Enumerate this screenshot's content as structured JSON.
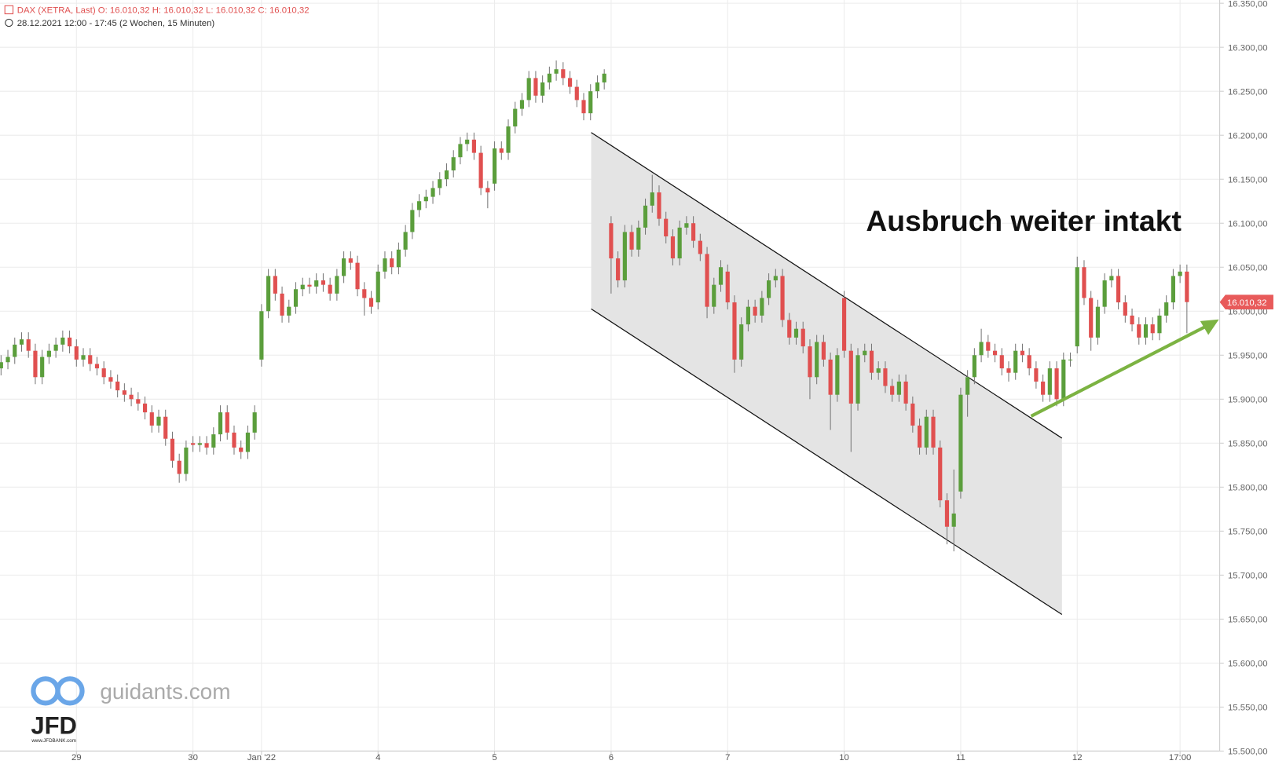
{
  "chart_data": {
    "type": "candlestick",
    "title": "DAX (XETRA, Last)  O: 16.010,32  H: 16.010,32  L: 16.010,32  C: 16.010,32",
    "subtitle": "28.12.2021 12:00 - 17:45   (2 Wochen, 15 Minuten)",
    "annotation": "Ausbruch weiter intakt",
    "watermark": "guidants.com",
    "brand": "JFD",
    "brand_url": "www.JFDBANK.com",
    "last_price_label": "16.010,32",
    "up_color": "#5b9e3c",
    "down_color": "#e05050",
    "grid": true,
    "categories": [
      null,
      null,
      null,
      null,
      null,
      null,
      null,
      null,
      null,
      null,
      null,
      "29",
      null,
      null,
      null,
      null,
      null,
      null,
      null,
      null,
      null,
      null,
      null,
      null,
      null,
      null,
      null,
      null,
      "30",
      null,
      null,
      null,
      null,
      null,
      null,
      null,
      null,
      null,
      "Jan '22",
      null,
      null,
      null,
      null,
      null,
      null,
      null,
      null,
      null,
      null,
      null,
      null,
      null,
      null,
      null,
      null,
      "4",
      null,
      null,
      null,
      null,
      null,
      null,
      null,
      null,
      null,
      null,
      null,
      null,
      null,
      null,
      null,
      null,
      "5",
      null,
      null,
      null,
      null,
      null,
      null,
      null,
      null,
      null,
      null,
      null,
      null,
      null,
      null,
      null,
      null,
      "6",
      null,
      null,
      null,
      null,
      null,
      null,
      null,
      null,
      null,
      null,
      null,
      null,
      null,
      null,
      null,
      null,
      "7",
      null,
      null,
      null,
      null,
      null,
      null,
      null,
      null,
      null,
      null,
      null,
      null,
      null,
      null,
      null,
      null,
      "10",
      null,
      null,
      null,
      null,
      null,
      null,
      null,
      null,
      null,
      null,
      null,
      null,
      null,
      null,
      null,
      null,
      "11",
      null,
      null,
      null,
      null,
      null,
      null,
      null,
      null,
      null,
      null,
      null,
      null,
      null,
      null,
      null,
      null,
      "12",
      null,
      null,
      null,
      null,
      null,
      null,
      null,
      null,
      null,
      null,
      null,
      null,
      null,
      null,
      "17:00",
      null
    ],
    "open": [
      15935,
      15942,
      15948,
      15962,
      15968,
      15955,
      15925,
      15948,
      15955,
      15962,
      15970,
      15960,
      15945,
      15950,
      15940,
      15935,
      15925,
      15920,
      15910,
      15905,
      15900,
      15895,
      15885,
      15870,
      15880,
      15855,
      15830,
      15815,
      15850,
      15848,
      15850,
      15845,
      15860,
      15885,
      15862,
      15845,
      15840,
      15862,
      15945,
      16000,
      16040,
      16020,
      15995,
      16005,
      16025,
      16030,
      16028,
      16035,
      16030,
      16020,
      16040,
      16060,
      16055,
      16025,
      16015,
      16010,
      16045,
      16060,
      16050,
      16070,
      16090,
      16115,
      16125,
      16130,
      16140,
      16150,
      16160,
      16175,
      16190,
      16195,
      16180,
      16140,
      16145,
      16185,
      16180,
      16210,
      16230,
      16240,
      16265,
      16245,
      16260,
      16270,
      16275,
      16265,
      16255,
      16240,
      16225,
      16250,
      16260,
      16100,
      16060,
      16035,
      16090,
      16070,
      16095,
      16120,
      16135,
      16105,
      16085,
      16060,
      16095,
      16100,
      16080,
      16065,
      16005,
      16030,
      16045,
      16010,
      15945,
      15985,
      16005,
      15995,
      16015,
      16035,
      16040,
      15990,
      15970,
      15980,
      15960,
      15925,
      15965,
      15945,
      15905,
      16015,
      15955,
      15895,
      15950,
      15955,
      15930,
      15935,
      15915,
      15905,
      15920,
      15895,
      15870,
      15845,
      15880,
      15845,
      15785,
      15755,
      15795,
      15905,
      15925,
      15950,
      15965,
      15955,
      15950,
      15935,
      15930,
      15955,
      15950,
      15935,
      15920,
      15905,
      15935,
      15900,
      15945,
      15960,
      16050,
      16015,
      15970,
      16005,
      16035,
      16040,
      16010,
      15995,
      15985,
      15970,
      15985,
      15975,
      15995,
      16010,
      16040,
      16045
    ],
    "high": [
      15950,
      15956,
      15970,
      15976,
      15976,
      15963,
      15956,
      15963,
      15970,
      15978,
      15978,
      15968,
      15958,
      15958,
      15948,
      15943,
      15933,
      15928,
      15918,
      15913,
      15908,
      15903,
      15893,
      15888,
      15888,
      15863,
      15838,
      15853,
      15858,
      15858,
      15858,
      15868,
      15893,
      15893,
      15870,
      15853,
      15870,
      15893,
      16008,
      16048,
      16048,
      16028,
      16013,
      16033,
      16038,
      16038,
      16043,
      16043,
      16038,
      16048,
      16068,
      16068,
      16063,
      16033,
      16023,
      16053,
      16068,
      16068,
      16078,
      16098,
      16123,
      16133,
      16138,
      16148,
      16158,
      16168,
      16183,
      16198,
      16203,
      16203,
      16188,
      16148,
      16193,
      16193,
      16218,
      16238,
      16248,
      16273,
      16273,
      16268,
      16278,
      16285,
      16283,
      16273,
      16263,
      16248,
      16258,
      16268,
      16275,
      16108,
      16068,
      16098,
      16098,
      16103,
      16128,
      16155,
      16143,
      16113,
      16093,
      16103,
      16108,
      16108,
      16088,
      16073,
      16038,
      16058,
      16053,
      16018,
      15993,
      16013,
      16013,
      16023,
      16043,
      16048,
      16048,
      15998,
      15988,
      15988,
      15968,
      15973,
      15973,
      15953,
      15958,
      16023,
      15963,
      15958,
      15963,
      15963,
      15943,
      15943,
      15923,
      15928,
      15928,
      15903,
      15878,
      15888,
      15888,
      15853,
      15793,
      15820,
      15913,
      15933,
      15958,
      15980,
      15973,
      15963,
      15958,
      15943,
      15963,
      15963,
      15958,
      15943,
      15928,
      15943,
      15943,
      15953,
      15953,
      16062,
      16058,
      16023,
      16013,
      16043,
      16048,
      16048,
      16018,
      16003,
      15993,
      15993,
      15993,
      16003,
      16018,
      16048,
      16053,
      16053
    ],
    "low": [
      15927,
      15934,
      15940,
      15954,
      15947,
      15917,
      15917,
      15940,
      15947,
      15954,
      15952,
      15937,
      15937,
      15932,
      15927,
      15917,
      15912,
      15902,
      15897,
      15892,
      15887,
      15877,
      15862,
      15862,
      15847,
      15822,
      15805,
      15807,
      15840,
      15840,
      15837,
      15837,
      15852,
      15854,
      15837,
      15832,
      15832,
      15854,
      15937,
      15992,
      16012,
      15987,
      15987,
      15997,
      16017,
      16020,
      16020,
      16022,
      16012,
      16012,
      16032,
      16047,
      16017,
      15995,
      15997,
      16002,
      16037,
      16042,
      16042,
      16062,
      16082,
      16107,
      16117,
      16122,
      16132,
      16142,
      16152,
      16167,
      16182,
      16172,
      16132,
      16117,
      16137,
      16172,
      16172,
      16202,
      16222,
      16232,
      16237,
      16237,
      16252,
      16262,
      16257,
      16247,
      16232,
      16217,
      16217,
      16242,
      16252,
      16020,
      16027,
      16027,
      16062,
      16062,
      16087,
      16112,
      16097,
      16077,
      16052,
      16052,
      16087,
      16072,
      16057,
      15992,
      15997,
      16022,
      16002,
      15930,
      15937,
      15977,
      15987,
      15987,
      16007,
      16027,
      15982,
      15962,
      15962,
      15952,
      15900,
      15917,
      15937,
      15865,
      15897,
      15947,
      15840,
      15887,
      15942,
      15922,
      15922,
      15907,
      15897,
      15897,
      15887,
      15862,
      15837,
      15837,
      15837,
      15777,
      15735,
      15727,
      15787,
      15880,
      15917,
      15942,
      15947,
      15942,
      15927,
      15920,
      15922,
      15942,
      15927,
      15912,
      15897,
      15897,
      15892,
      15892,
      15937,
      15952,
      16007,
      15955,
      15962,
      15997,
      16027,
      16002,
      15987,
      15977,
      15962,
      15962,
      15967,
      15967,
      15987,
      16002,
      16032,
      15975
    ],
    "close": [
      15942,
      15948,
      15962,
      15968,
      15955,
      15925,
      15948,
      15955,
      15962,
      15970,
      15960,
      15945,
      15950,
      15940,
      15935,
      15925,
      15920,
      15910,
      15905,
      15900,
      15895,
      15885,
      15870,
      15880,
      15855,
      15830,
      15815,
      15845,
      15848,
      15850,
      15845,
      15860,
      15885,
      15862,
      15845,
      15840,
      15862,
      15885,
      16000,
      16040,
      16020,
      15995,
      16005,
      16025,
      16030,
      16028,
      16035,
      16030,
      16020,
      16040,
      16060,
      16055,
      16025,
      16015,
      16005,
      16045,
      16060,
      16050,
      16070,
      16090,
      16115,
      16125,
      16130,
      16140,
      16150,
      16160,
      16175,
      16190,
      16195,
      16180,
      16140,
      16135,
      16185,
      16180,
      16210,
      16230,
      16240,
      16265,
      16245,
      16260,
      16270,
      16275,
      16265,
      16255,
      16240,
      16225,
      16250,
      16260,
      16270,
      16060,
      16035,
      16090,
      16070,
      16095,
      16120,
      16135,
      16105,
      16085,
      16060,
      16095,
      16100,
      16080,
      16065,
      16005,
      16030,
      16050,
      16010,
      15945,
      15985,
      16005,
      15995,
      16015,
      16035,
      16040,
      15990,
      15970,
      15980,
      15960,
      15925,
      15965,
      15945,
      15905,
      15950,
      15955,
      15895,
      15950,
      15955,
      15930,
      15935,
      15915,
      15905,
      15920,
      15895,
      15870,
      15845,
      15880,
      15845,
      15785,
      15755,
      15770,
      15905,
      15925,
      15950,
      15965,
      15955,
      15950,
      15935,
      15930,
      15955,
      15950,
      15935,
      15920,
      15905,
      15935,
      15900,
      15945,
      15945,
      16050,
      16015,
      15970,
      16005,
      16035,
      16040,
      16010,
      15995,
      15985,
      15970,
      15985,
      15975,
      15995,
      16010,
      16040,
      16045,
      16010.32
    ],
    "ylim": [
      15500,
      16350
    ],
    "yticks": [
      {
        "value": 15500,
        "label": "15.500,00"
      },
      {
        "value": 15550,
        "label": "15.550,00"
      },
      {
        "value": 15600,
        "label": "15.600,00"
      },
      {
        "value": 15650,
        "label": "15.650,00"
      },
      {
        "value": 15700,
        "label": "15.700,00"
      },
      {
        "value": 15750,
        "label": "15.750,00"
      },
      {
        "value": 15800,
        "label": "15.800,00"
      },
      {
        "value": 15850,
        "label": "15.850,00"
      },
      {
        "value": 15900,
        "label": "15.900,00"
      },
      {
        "value": 15950,
        "label": "15.950,00"
      },
      {
        "value": 16000,
        "label": "16.000,00"
      },
      {
        "value": 16050,
        "label": "16.050,00"
      },
      {
        "value": 16100,
        "label": "16.100,00"
      },
      {
        "value": 16150,
        "label": "16.150,00"
      },
      {
        "value": 16200,
        "label": "16.200,00"
      },
      {
        "value": 16250,
        "label": "16.250,00"
      },
      {
        "value": 16300,
        "label": "16.300,00"
      },
      {
        "value": 16350,
        "label": "16.350,00"
      }
    ]
  }
}
